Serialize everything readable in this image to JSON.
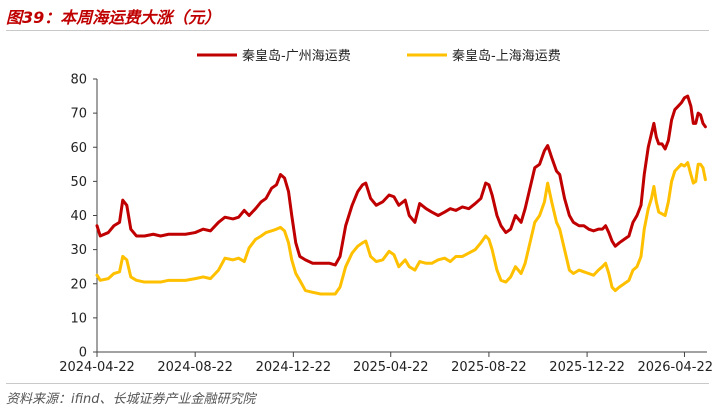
{
  "header": {
    "title": "图39：本周海运费大涨（元）"
  },
  "footer": {
    "source": "资料来源：ifind、长城证券产业金融研究院"
  },
  "chart_data": {
    "type": "line",
    "title": "图39：本周海运费大涨（元）",
    "ylim": [
      0,
      80
    ],
    "yticks": [
      "0",
      "10",
      "20",
      "30",
      "40",
      "50",
      "60",
      "70",
      "80"
    ],
    "xticks": [
      "2024-04-22",
      "2024-08-22",
      "2024-12-22",
      "2025-04-22",
      "2025-08-22",
      "2025-12-22",
      "2026-04-22"
    ],
    "xlim": [
      "2024-04-22",
      "2026-05-20"
    ],
    "legend_position": "top",
    "series": [
      {
        "name": "秦皇岛-广州海运费",
        "color": "#c00000",
        "points": [
          [
            "2024-04-22",
            37
          ],
          [
            "2024-04-26",
            34
          ],
          [
            "2024-05-06",
            35
          ],
          [
            "2024-05-13",
            37
          ],
          [
            "2024-05-20",
            38
          ],
          [
            "2024-05-24",
            44.5
          ],
          [
            "2024-05-29",
            43
          ],
          [
            "2024-06-03",
            36
          ],
          [
            "2024-06-10",
            34
          ],
          [
            "2024-06-20",
            34
          ],
          [
            "2024-07-01",
            34.5
          ],
          [
            "2024-07-10",
            34
          ],
          [
            "2024-07-20",
            34.5
          ],
          [
            "2024-08-01",
            34.5
          ],
          [
            "2024-08-10",
            34.5
          ],
          [
            "2024-08-22",
            35
          ],
          [
            "2024-09-01",
            36
          ],
          [
            "2024-09-10",
            35.5
          ],
          [
            "2024-09-20",
            38
          ],
          [
            "2024-09-28",
            39.5
          ],
          [
            "2024-10-08",
            39
          ],
          [
            "2024-10-15",
            39.5
          ],
          [
            "2024-10-22",
            41.5
          ],
          [
            "2024-10-28",
            40
          ],
          [
            "2024-11-05",
            42
          ],
          [
            "2024-11-12",
            44
          ],
          [
            "2024-11-18",
            45
          ],
          [
            "2024-11-25",
            48
          ],
          [
            "2024-12-01",
            49
          ],
          [
            "2024-12-06",
            52
          ],
          [
            "2024-12-11",
            51
          ],
          [
            "2024-12-16",
            47
          ],
          [
            "2024-12-20",
            40
          ],
          [
            "2024-12-25",
            32
          ],
          [
            "2024-12-30",
            28
          ],
          [
            "2025-01-06",
            27
          ],
          [
            "2025-01-15",
            26
          ],
          [
            "2025-01-25",
            26
          ],
          [
            "2025-02-05",
            26
          ],
          [
            "2025-02-12",
            25.5
          ],
          [
            "2025-02-18",
            28
          ],
          [
            "2025-02-25",
            37
          ],
          [
            "2025-03-05",
            43
          ],
          [
            "2025-03-12",
            47
          ],
          [
            "2025-03-18",
            49
          ],
          [
            "2025-03-22",
            49.5
          ],
          [
            "2025-03-28",
            45
          ],
          [
            "2025-04-04",
            43
          ],
          [
            "2025-04-12",
            44
          ],
          [
            "2025-04-20",
            46
          ],
          [
            "2025-04-26",
            45.5
          ],
          [
            "2025-05-02",
            43
          ],
          [
            "2025-05-10",
            44.5
          ],
          [
            "2025-05-15",
            40
          ],
          [
            "2025-05-22",
            38
          ],
          [
            "2025-05-28",
            43.5
          ],
          [
            "2025-06-05",
            42
          ],
          [
            "2025-06-12",
            41
          ],
          [
            "2025-06-20",
            40
          ],
          [
            "2025-06-28",
            41
          ],
          [
            "2025-07-05",
            42
          ],
          [
            "2025-07-12",
            41.5
          ],
          [
            "2025-07-20",
            42.5
          ],
          [
            "2025-07-28",
            42
          ],
          [
            "2025-08-05",
            43.5
          ],
          [
            "2025-08-12",
            45
          ],
          [
            "2025-08-18",
            49.5
          ],
          [
            "2025-08-22",
            49
          ],
          [
            "2025-08-26",
            46
          ],
          [
            "2025-09-01",
            40
          ],
          [
            "2025-09-06",
            37
          ],
          [
            "2025-09-12",
            35
          ],
          [
            "2025-09-18",
            36
          ],
          [
            "2025-09-24",
            40
          ],
          [
            "2025-10-01",
            38
          ],
          [
            "2025-10-06",
            42
          ],
          [
            "2025-10-12",
            48
          ],
          [
            "2025-10-18",
            54
          ],
          [
            "2025-10-24",
            55
          ],
          [
            "2025-10-30",
            59
          ],
          [
            "2025-11-03",
            60.5
          ],
          [
            "2025-11-08",
            57
          ],
          [
            "2025-11-14",
            53
          ],
          [
            "2025-11-18",
            52
          ],
          [
            "2025-11-24",
            45
          ],
          [
            "2025-11-30",
            40
          ],
          [
            "2025-12-05",
            38
          ],
          [
            "2025-12-12",
            37
          ],
          [
            "2025-12-18",
            37
          ],
          [
            "2025-12-24",
            36
          ],
          [
            "2025-12-30",
            35.5
          ],
          [
            "2026-01-05",
            36
          ],
          [
            "2026-01-10",
            36
          ],
          [
            "2026-01-14",
            37
          ],
          [
            "2026-01-18",
            35
          ],
          [
            "2026-01-22",
            32.5
          ],
          [
            "2026-01-26",
            31
          ],
          [
            "2026-01-31",
            32
          ],
          [
            "2026-02-06",
            33
          ],
          [
            "2026-02-12",
            34
          ],
          [
            "2026-02-17",
            38
          ],
          [
            "2026-02-22",
            40
          ],
          [
            "2026-02-27",
            43
          ],
          [
            "2026-03-03",
            52
          ],
          [
            "2026-03-08",
            60
          ],
          [
            "2026-03-12",
            64
          ],
          [
            "2026-03-15",
            67
          ],
          [
            "2026-03-18",
            63
          ],
          [
            "2026-03-21",
            61
          ],
          [
            "2026-03-25",
            61
          ],
          [
            "2026-03-29",
            59.5
          ],
          [
            "2026-04-02",
            62
          ],
          [
            "2026-04-06",
            68
          ],
          [
            "2026-04-10",
            71
          ],
          [
            "2026-04-14",
            72
          ],
          [
            "2026-04-18",
            73
          ],
          [
            "2026-04-22",
            74.5
          ],
          [
            "2026-04-26",
            75
          ],
          [
            "2026-04-30",
            72
          ],
          [
            "2026-05-03",
            67
          ],
          [
            "2026-05-06",
            67
          ],
          [
            "2026-05-09",
            70
          ],
          [
            "2026-05-12",
            69.5
          ],
          [
            "2026-05-15",
            67
          ],
          [
            "2026-05-18",
            66
          ]
        ]
      },
      {
        "name": "秦皇岛-上海海运费",
        "color": "#ffc000",
        "points": [
          [
            "2024-04-22",
            22.5
          ],
          [
            "2024-04-26",
            21
          ],
          [
            "2024-05-06",
            21.5
          ],
          [
            "2024-05-13",
            23
          ],
          [
            "2024-05-20",
            23.5
          ],
          [
            "2024-05-24",
            28
          ],
          [
            "2024-05-29",
            27
          ],
          [
            "2024-06-03",
            22
          ],
          [
            "2024-06-10",
            21
          ],
          [
            "2024-06-20",
            20.5
          ],
          [
            "2024-07-01",
            20.5
          ],
          [
            "2024-07-10",
            20.5
          ],
          [
            "2024-07-20",
            21
          ],
          [
            "2024-08-01",
            21
          ],
          [
            "2024-08-10",
            21
          ],
          [
            "2024-08-22",
            21.5
          ],
          [
            "2024-09-01",
            22
          ],
          [
            "2024-09-10",
            21.5
          ],
          [
            "2024-09-20",
            24
          ],
          [
            "2024-09-28",
            27.5
          ],
          [
            "2024-10-08",
            27
          ],
          [
            "2024-10-15",
            27.5
          ],
          [
            "2024-10-22",
            26.5
          ],
          [
            "2024-10-28",
            30.5
          ],
          [
            "2024-11-05",
            33
          ],
          [
            "2024-11-12",
            34
          ],
          [
            "2024-11-18",
            35
          ],
          [
            "2024-11-25",
            35.5
          ],
          [
            "2024-12-01",
            36
          ],
          [
            "2024-12-06",
            36.5
          ],
          [
            "2024-12-11",
            35.5
          ],
          [
            "2024-12-16",
            32
          ],
          [
            "2024-12-20",
            27
          ],
          [
            "2024-12-25",
            23
          ],
          [
            "2024-12-30",
            21
          ],
          [
            "2025-01-06",
            18
          ],
          [
            "2025-01-15",
            17.5
          ],
          [
            "2025-01-25",
            17
          ],
          [
            "2025-02-05",
            17
          ],
          [
            "2025-02-12",
            17
          ],
          [
            "2025-02-18",
            19
          ],
          [
            "2025-02-25",
            25
          ],
          [
            "2025-03-05",
            29
          ],
          [
            "2025-03-12",
            31
          ],
          [
            "2025-03-18",
            32
          ],
          [
            "2025-03-22",
            32.5
          ],
          [
            "2025-03-28",
            28
          ],
          [
            "2025-04-04",
            26.5
          ],
          [
            "2025-04-12",
            27
          ],
          [
            "2025-04-20",
            29.5
          ],
          [
            "2025-04-26",
            28.5
          ],
          [
            "2025-05-02",
            25
          ],
          [
            "2025-05-10",
            27
          ],
          [
            "2025-05-15",
            25
          ],
          [
            "2025-05-22",
            24
          ],
          [
            "2025-05-28",
            26.5
          ],
          [
            "2025-06-05",
            26
          ],
          [
            "2025-06-12",
            26
          ],
          [
            "2025-06-20",
            27
          ],
          [
            "2025-06-28",
            27.5
          ],
          [
            "2025-07-05",
            26.5
          ],
          [
            "2025-07-12",
            28
          ],
          [
            "2025-07-20",
            28
          ],
          [
            "2025-07-28",
            29
          ],
          [
            "2025-08-05",
            30
          ],
          [
            "2025-08-12",
            32
          ],
          [
            "2025-08-18",
            34
          ],
          [
            "2025-08-22",
            33
          ],
          [
            "2025-08-26",
            30
          ],
          [
            "2025-09-01",
            24
          ],
          [
            "2025-09-06",
            21
          ],
          [
            "2025-09-12",
            20.5
          ],
          [
            "2025-09-18",
            22
          ],
          [
            "2025-09-24",
            25
          ],
          [
            "2025-10-01",
            23
          ],
          [
            "2025-10-06",
            26
          ],
          [
            "2025-10-12",
            32
          ],
          [
            "2025-10-18",
            38
          ],
          [
            "2025-10-24",
            40
          ],
          [
            "2025-10-30",
            44
          ],
          [
            "2025-11-03",
            49.5
          ],
          [
            "2025-11-08",
            44
          ],
          [
            "2025-11-14",
            38
          ],
          [
            "2025-11-18",
            36
          ],
          [
            "2025-11-24",
            30
          ],
          [
            "2025-11-30",
            24
          ],
          [
            "2025-12-05",
            23
          ],
          [
            "2025-12-12",
            24
          ],
          [
            "2025-12-18",
            23.5
          ],
          [
            "2025-12-24",
            23
          ],
          [
            "2025-12-30",
            22.5
          ],
          [
            "2026-01-05",
            24
          ],
          [
            "2026-01-10",
            25
          ],
          [
            "2026-01-14",
            26
          ],
          [
            "2026-01-18",
            23
          ],
          [
            "2026-01-22",
            19
          ],
          [
            "2026-01-26",
            18
          ],
          [
            "2026-01-31",
            19
          ],
          [
            "2026-02-06",
            20
          ],
          [
            "2026-02-12",
            21
          ],
          [
            "2026-02-17",
            24
          ],
          [
            "2026-02-22",
            25
          ],
          [
            "2026-02-27",
            28
          ],
          [
            "2026-03-03",
            36
          ],
          [
            "2026-03-08",
            42
          ],
          [
            "2026-03-12",
            45
          ],
          [
            "2026-03-15",
            48.5
          ],
          [
            "2026-03-18",
            44
          ],
          [
            "2026-03-21",
            41
          ],
          [
            "2026-03-25",
            40.5
          ],
          [
            "2026-03-29",
            40
          ],
          [
            "2026-04-02",
            44
          ],
          [
            "2026-04-06",
            50
          ],
          [
            "2026-04-10",
            53
          ],
          [
            "2026-04-14",
            54
          ],
          [
            "2026-04-18",
            55
          ],
          [
            "2026-04-22",
            54.5
          ],
          [
            "2026-04-26",
            55.5
          ],
          [
            "2026-04-30",
            52
          ],
          [
            "2026-05-03",
            49.5
          ],
          [
            "2026-05-06",
            50
          ],
          [
            "2026-05-09",
            55
          ],
          [
            "2026-05-12",
            55
          ],
          [
            "2026-05-15",
            54
          ],
          [
            "2026-05-18",
            50.5
          ]
        ]
      }
    ]
  }
}
